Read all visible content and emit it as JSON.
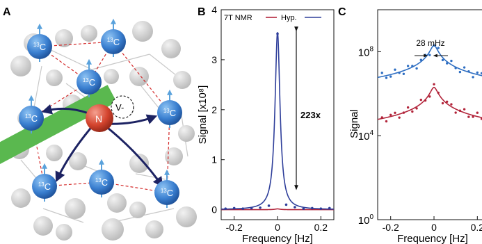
{
  "panels": {
    "a": {
      "label": "A",
      "center_atom": "N",
      "vacancy": "V-",
      "carbon": "13C",
      "laser": "Laser"
    },
    "b": {
      "label": "B"
    },
    "c": {
      "label": "C"
    }
  },
  "chart_data": [
    {
      "type": "line",
      "panel": "B",
      "xlabel": "Frequency [Hz]",
      "ylabel": "Signal [x10⁸]",
      "xlim": [
        -0.26,
        0.26
      ],
      "ylim": [
        -0.2,
        4.0
      ],
      "xticks": [
        "-0.2",
        "0",
        "0.2"
      ],
      "yticks": [
        "0",
        "1",
        "2",
        "3",
        "4"
      ],
      "legend": [
        "7T NMR",
        "Hyp."
      ],
      "legend_position": "top",
      "annotation": "223x",
      "series": [
        {
          "name": "7T NMR",
          "color": "#b2243a",
          "center": 0,
          "peak": 0.016,
          "hwhm": 0.014
        },
        {
          "name": "Hyp.",
          "color": "#2e3e9a",
          "center": 0,
          "peak": 3.55,
          "hwhm": 0.014
        }
      ],
      "scatter": {
        "name": "Hyp.",
        "x": [
          -0.24,
          -0.2,
          -0.16,
          -0.12,
          -0.08,
          -0.04,
          0,
          0.04,
          0.08,
          0.12,
          0.16,
          0.2,
          0.24
        ],
        "y": [
          0.02,
          0.03,
          0.02,
          0.03,
          0.04,
          0.08,
          3.52,
          0.1,
          0.05,
          0.02,
          0.03,
          0.02,
          0.03
        ]
      }
    },
    {
      "type": "line",
      "panel": "C",
      "xlabel": "Frequency [Hz]",
      "ylabel": "Signal",
      "log_scale": true,
      "xlim": [
        -0.26,
        0.26
      ],
      "ylim_log10": [
        0,
        10
      ],
      "xticks": [
        "-0.2",
        "0",
        "0.2"
      ],
      "ytick_exponents": [
        0,
        4,
        8
      ],
      "annotation": "28 mHz",
      "series": [
        {
          "name": "Hyp.",
          "color": "#2e6ec2",
          "peak_log10": 8.3
        },
        {
          "name": "7T NMR",
          "color": "#b2243a",
          "peak_log10": 6.3
        }
      ]
    }
  ]
}
